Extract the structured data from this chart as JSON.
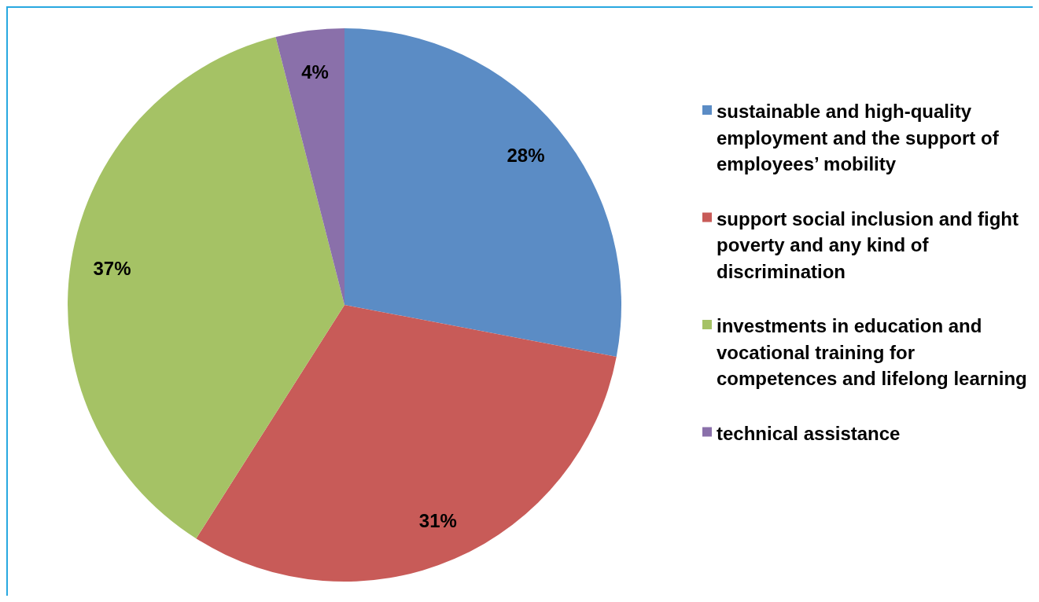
{
  "chart_data": {
    "type": "pie",
    "categories": [
      "sustainable and high-quality employment and the support of employees’ mobility",
      "support social inclusion and fight poverty and any kind of discrimination",
      "investments in education and vocational training for competences and lifelong learning",
      "technical assistance"
    ],
    "values": [
      28,
      31,
      37,
      4
    ],
    "colors": [
      "#5b8cc5",
      "#c85b58",
      "#a5c265",
      "#8a70aa"
    ],
    "value_labels": [
      "28%",
      "31%",
      "37%",
      "4%"
    ],
    "legend": "right"
  }
}
